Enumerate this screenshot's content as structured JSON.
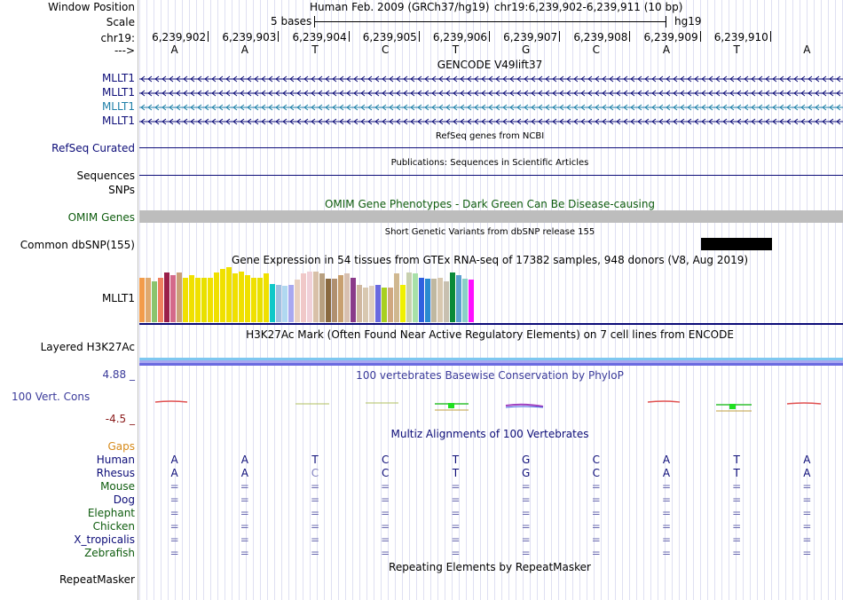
{
  "header": {
    "window_position_label": "Window Position",
    "assembly": "Human Feb. 2009 (GRCh37/hg19)",
    "position": "chr19:6,239,902-6,239,911 (10 bp)",
    "scale_label": "Scale",
    "scale_text": "5 bases",
    "scale_db": "hg19",
    "chrom_label": "chr19:",
    "arrow_label": "--->",
    "positions": [
      "6,239,902",
      "6,239,903",
      "6,239,904",
      "6,239,905",
      "6,239,906",
      "6,239,907",
      "6,239,908",
      "6,239,909",
      "6,239,910"
    ],
    "bases": [
      "A",
      "A",
      "T",
      "C",
      "T",
      "G",
      "C",
      "A",
      "T",
      "A"
    ]
  },
  "gencode": {
    "title": "GENCODE V49lift37",
    "genes": [
      "MLLT1",
      "MLLT1",
      "MLLT1",
      "MLLT1"
    ],
    "colors": [
      "#0c0c78",
      "#0c0c78",
      "#1e7fa8",
      "#0c0c78"
    ]
  },
  "refseq": {
    "label": "RefSeq Curated",
    "title": "RefSeq genes from NCBI",
    "color": "#0c0c78"
  },
  "publications": {
    "label": "Sequences",
    "title": "Publications: Sequences in Scientific Articles"
  },
  "snps_label": "SNPs",
  "omim": {
    "title": "OMIM Gene Phenotypes - Dark Green Can Be Disease-causing",
    "label": "OMIM Genes",
    "color": "#0e5c0e"
  },
  "dbsnp": {
    "title": "Short Genetic Variants from dbSNP release 155",
    "label": "Common dbSNP(155)"
  },
  "gtex": {
    "title": "Gene Expression in 54 tissues from GTEx RNA-seq of 17382 samples, 948 donors (V8, Aug 2019)",
    "label": "MLLT1",
    "values": [
      0.72,
      0.72,
      0.65,
      0.72,
      0.8,
      0.75,
      0.8,
      0.72,
      0.75,
      0.72,
      0.72,
      0.72,
      0.8,
      0.85,
      0.88,
      0.78,
      0.82,
      0.75,
      0.72,
      0.72,
      0.78,
      0.62,
      0.6,
      0.58,
      0.6,
      0.68,
      0.78,
      0.82,
      0.82,
      0.78,
      0.7,
      0.7,
      0.75,
      0.78,
      0.72,
      0.6,
      0.55,
      0.58,
      0.6,
      0.56,
      0.55,
      0.78,
      0.6,
      0.8,
      0.78,
      0.72,
      0.7,
      0.7,
      0.72,
      0.65,
      0.8,
      0.75,
      0.7,
      0.68
    ],
    "colors": [
      "#f39c4a",
      "#e0a96e",
      "#8ac46e",
      "#f08060",
      "#9a1e4a",
      "#d46a8a",
      "#caa078",
      "#f0e000",
      "#f0e000",
      "#f0e000",
      "#e8e000",
      "#f0e000",
      "#f0e000",
      "#f0e000",
      "#f0e000",
      "#f0e000",
      "#f0e000",
      "#f0e000",
      "#f0e000",
      "#e8e000",
      "#f0e000",
      "#10c8c8",
      "#a0c0e0",
      "#b0d8f0",
      "#a8a8f0",
      "#e8d0c0",
      "#f0c8c8",
      "#f0d0d8",
      "#d8c0a8",
      "#b8a080",
      "#8a6a40",
      "#b09070",
      "#c8a070",
      "#d8c0b0",
      "#8a3a8a",
      "#d0b8a0",
      "#d8c8b0",
      "#e0d0c0",
      "#6a6ae0",
      "#a8d020",
      "#d0a880",
      "#d0b890",
      "#f0f000",
      "#c8d0b0",
      "#a8e0a8",
      "#3060e0",
      "#2a8ad0",
      "#c0b8a0",
      "#d8c8b0",
      "#c8c0b0",
      "#0a8a3a",
      "#5aa0d0",
      "#8ad0c8",
      "#ff10ff"
    ]
  },
  "h3k27ac": {
    "title": "H3K27Ac Mark (Often Found Near Active Regulatory Elements) on 7 cell lines from ENCODE",
    "label": "Layered H3K27Ac"
  },
  "phylop": {
    "title": "100 vertebrates Basewise Conservation by PhyloP",
    "max": "4.88 _",
    "min": "-4.5 _",
    "label": "100 Vert. Cons",
    "label_color": "#3a3a9a",
    "title_color": "#3a3a9a",
    "max_color": "#3a3a9a",
    "min_color": "#8a1a1a"
  },
  "multiz": {
    "title": "Multiz Alignments of 100 Vertebrates",
    "title_color": "#0c0c78",
    "gaps_label": "Gaps",
    "gaps_color": "#d68a1a",
    "species": [
      {
        "name": "Human",
        "color": "#0c0c78",
        "bases": [
          "A",
          "A",
          "T",
          "C",
          "T",
          "G",
          "C",
          "A",
          "T",
          "A"
        ]
      },
      {
        "name": "Rhesus",
        "color": "#0c0c78",
        "bases": [
          "A",
          "A",
          "C",
          "C",
          "T",
          "G",
          "C",
          "A",
          "T",
          "A"
        ]
      },
      {
        "name": "Mouse",
        "color": "#0e5c0e",
        "bases": [
          "=",
          "=",
          "=",
          "=",
          "=",
          "=",
          "=",
          "=",
          "=",
          "="
        ]
      },
      {
        "name": "Dog",
        "color": "#0c0c78",
        "bases": [
          "=",
          "=",
          "=",
          "=",
          "=",
          "=",
          "=",
          "=",
          "=",
          "="
        ]
      },
      {
        "name": "Elephant",
        "color": "#0e5c0e",
        "bases": [
          "=",
          "=",
          "=",
          "=",
          "=",
          "=",
          "=",
          "=",
          "=",
          "="
        ]
      },
      {
        "name": "Chicken",
        "color": "#0e5c0e",
        "bases": [
          "=",
          "=",
          "=",
          "=",
          "=",
          "=",
          "=",
          "=",
          "=",
          "="
        ]
      },
      {
        "name": "X_tropicalis",
        "color": "#0c0c78",
        "bases": [
          "=",
          "=",
          "=",
          "=",
          "=",
          "=",
          "=",
          "=",
          "=",
          "="
        ]
      },
      {
        "name": "Zebrafish",
        "color": "#0e5c0e",
        "bases": [
          "=",
          "=",
          "=",
          "=",
          "=",
          "=",
          "=",
          "=",
          "=",
          "="
        ]
      }
    ]
  },
  "repeatmasker": {
    "title": "Repeating Elements by RepeatMasker",
    "label": "RepeatMasker"
  }
}
